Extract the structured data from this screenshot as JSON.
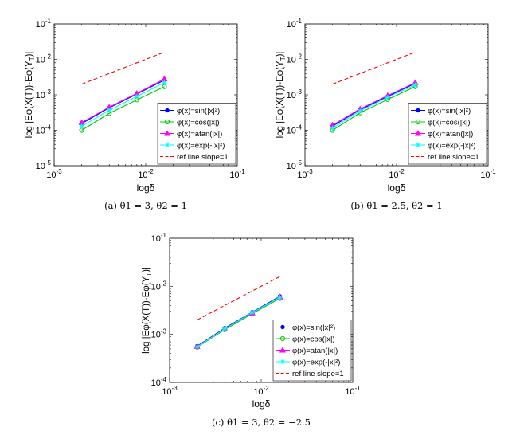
{
  "chart_data": [
    {
      "type": "line",
      "xscale": "log",
      "yscale": "log",
      "xlim": [
        0.001,
        0.1
      ],
      "ylim": [
        1e-05,
        0.1
      ],
      "xlabel": "logδ",
      "ylabel": "log |Eφ(X(T))-Eφ(Y_T)|",
      "x_ticks": [
        "10^-3",
        "10^-2",
        "10^-1"
      ],
      "y_ticks": [
        "10^-5",
        "10^-4",
        "10^-3",
        "10^-2",
        "10^-1"
      ],
      "legend_position": "bottom-right",
      "caption": "(a) θ1 = 3, θ2 = 1",
      "x": [
        0.002,
        0.004,
        0.008,
        0.016
      ],
      "series": [
        {
          "name": "φ(x)=sin(|x|²)",
          "color": "#0000ff",
          "marker": "dot",
          "values": [
            0.000155,
            0.00043,
            0.00105,
            0.0026
          ]
        },
        {
          "name": "φ(x)=cos(|x|)",
          "color": "#00cc00",
          "marker": "circle",
          "values": [
            0.0001,
            0.0003,
            0.00072,
            0.0017
          ]
        },
        {
          "name": "φ(x)=atan(|x|)",
          "color": "#ff00ff",
          "marker": "triangle",
          "values": [
            0.000165,
            0.00045,
            0.0011,
            0.0028
          ]
        },
        {
          "name": "φ(x)=exp(-|x|²)",
          "color": "#00ffff",
          "marker": "star",
          "values": [
            0.00013,
            0.00037,
            0.0009,
            0.0022
          ]
        },
        {
          "name": "ref line slope=1",
          "color": "#ff0000",
          "dashed": true,
          "values": [
            0.002,
            0.004,
            0.008,
            0.016
          ]
        }
      ]
    },
    {
      "type": "line",
      "xscale": "log",
      "yscale": "log",
      "xlim": [
        0.001,
        0.1
      ],
      "ylim": [
        1e-05,
        0.1
      ],
      "xlabel": "logδ",
      "ylabel": "log |Eφ(X(T))-Eφ(Y_T)|",
      "x_ticks": [
        "10^-3",
        "10^-2",
        "10^-1"
      ],
      "y_ticks": [
        "10^-5",
        "10^-4",
        "10^-3",
        "10^-2",
        "10^-1"
      ],
      "legend_position": "bottom-right",
      "caption": "(b) θ1 = 2.5, θ2 = 1",
      "x": [
        0.002,
        0.004,
        0.008,
        0.016
      ],
      "series": [
        {
          "name": "φ(x)=sin(|x|²)",
          "color": "#0000ff",
          "marker": "dot",
          "values": [
            0.00013,
            0.00038,
            0.0009,
            0.0021
          ]
        },
        {
          "name": "φ(x)=cos(|x|)",
          "color": "#00cc00",
          "marker": "circle",
          "values": [
            0.0001,
            0.00031,
            0.00074,
            0.0017
          ]
        },
        {
          "name": "φ(x)=atan(|x|)",
          "color": "#ff00ff",
          "marker": "triangle",
          "values": [
            0.00014,
            0.0004,
            0.00095,
            0.0022
          ]
        },
        {
          "name": "φ(x)=exp(-|x|²)",
          "color": "#00ffff",
          "marker": "star",
          "values": [
            0.000115,
            0.00035,
            0.00085,
            0.0019
          ]
        },
        {
          "name": "ref line slope=1",
          "color": "#ff0000",
          "dashed": true,
          "values": [
            0.002,
            0.004,
            0.008,
            0.016
          ]
        }
      ]
    },
    {
      "type": "line",
      "xscale": "log",
      "yscale": "log",
      "xlim": [
        0.001,
        0.1
      ],
      "ylim": [
        0.0001,
        0.1
      ],
      "xlabel": "logδ",
      "ylabel": "log |Eφ(X(T))-Eφ(Y_T)|",
      "x_ticks": [
        "10^-3",
        "10^-2",
        "10^-1"
      ],
      "y_ticks": [
        "10^-4",
        "10^-3",
        "10^-2",
        "10^-1"
      ],
      "legend_position": "bottom-right",
      "caption": "(c) θ1 = 3, θ2 = −2.5",
      "x": [
        0.002,
        0.004,
        0.008,
        0.016
      ],
      "series": [
        {
          "name": "φ(x)=sin(|x|²)",
          "color": "#0000ff",
          "marker": "dot",
          "values": [
            0.00057,
            0.00135,
            0.0029,
            0.0062
          ]
        },
        {
          "name": "φ(x)=cos(|x|)",
          "color": "#00cc00",
          "marker": "circle",
          "values": [
            0.00054,
            0.00125,
            0.0027,
            0.0056
          ]
        },
        {
          "name": "φ(x)=atan(|x|)",
          "color": "#ff00ff",
          "marker": "triangle",
          "values": [
            0.00056,
            0.0013,
            0.0028,
            0.006
          ]
        },
        {
          "name": "φ(x)=exp(-|x|²)",
          "color": "#00ffff",
          "marker": "star",
          "values": [
            0.00055,
            0.0013,
            0.00285,
            0.0059
          ]
        },
        {
          "name": "ref line slope=1",
          "color": "#ff0000",
          "dashed": true,
          "values": [
            0.002,
            0.004,
            0.008,
            0.016
          ]
        }
      ]
    }
  ]
}
